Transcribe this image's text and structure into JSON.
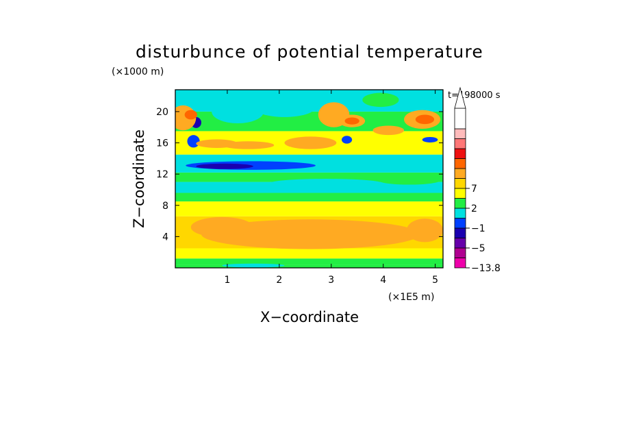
{
  "chart_data": {
    "type": "heatmap",
    "title": "disturbunce of potential temperature",
    "y_unit": "(×1000 m)",
    "x_unit": "(×1E5 m)",
    "time_label": "t=198000 s",
    "xlabel": "X−coordinate",
    "ylabel": "Z−coordinate",
    "xlim": [
      0,
      5.15
    ],
    "ylim": [
      0,
      22.8
    ],
    "xticks": [
      1,
      2,
      3,
      4,
      5
    ],
    "yticks": [
      4,
      8,
      12,
      16,
      20
    ],
    "colorbar": {
      "labels": [
        {
          "value": "7",
          "level": 8
        },
        {
          "value": "2",
          "level": 6
        },
        {
          "value": "−1",
          "level": 4
        },
        {
          "value": "−5",
          "level": 2
        },
        {
          "value": "−13.8",
          "level": 0
        }
      ],
      "colors": [
        "#ee00aa",
        "#b00090",
        "#6600aa",
        "#1a00b0",
        "#0040ff",
        "#00e0e0",
        "#22ee44",
        "#ffff00",
        "#ffd700",
        "#ffaa22",
        "#ff6600",
        "#ee1111",
        "#ff7777",
        "#ffbbbb",
        "#ffffff"
      ],
      "extend_max": true
    },
    "bands": [
      {
        "z0": 0.0,
        "z1": 0.4,
        "color": "#22ee44"
      },
      {
        "z0": 0.4,
        "z1": 1.2,
        "color": "#22ee44"
      },
      {
        "z0": 1.2,
        "z1": 2.5,
        "color": "#ffff00"
      },
      {
        "z0": 2.5,
        "z1": 6.6,
        "color": "#ffd700"
      },
      {
        "z0": 6.6,
        "z1": 8.5,
        "color": "#ffff00"
      },
      {
        "z0": 8.5,
        "z1": 9.6,
        "color": "#22ee44"
      },
      {
        "z0": 9.6,
        "z1": 11.0,
        "color": "#00e0e0"
      },
      {
        "z0": 11.0,
        "z1": 12.2,
        "color": "#22ee44"
      },
      {
        "z0": 12.2,
        "z1": 14.5,
        "color": "#00e0e0"
      },
      {
        "z0": 14.5,
        "z1": 17.5,
        "color": "#ffff00"
      },
      {
        "z0": 17.5,
        "z1": 20.0,
        "color": "#22ee44"
      },
      {
        "z0": 20.0,
        "z1": 22.8,
        "color": "#00e0e0"
      }
    ],
    "features": [
      {
        "x": 2.6,
        "z": 4.3,
        "rx": 2.1,
        "rz": 1.9,
        "color": "#ffaa22"
      },
      {
        "x": 0.9,
        "z": 5.2,
        "rx": 0.6,
        "rz": 1.3,
        "color": "#ffaa22"
      },
      {
        "x": 4.8,
        "z": 4.8,
        "rx": 0.35,
        "rz": 1.5,
        "color": "#ffaa22"
      },
      {
        "x": 1.45,
        "z": 13.1,
        "rx": 1.25,
        "rz": 0.55,
        "color": "#0040ff"
      },
      {
        "x": 0.95,
        "z": 13.0,
        "rx": 0.55,
        "rz": 0.35,
        "color": "#1a00b0"
      },
      {
        "x": 0.35,
        "z": 16.2,
        "rx": 0.12,
        "rz": 0.8,
        "color": "#0040ff"
      },
      {
        "x": 0.4,
        "z": 18.6,
        "rx": 0.1,
        "rz": 0.7,
        "color": "#1a00b0"
      },
      {
        "x": 0.8,
        "z": 15.9,
        "rx": 0.4,
        "rz": 0.55,
        "color": "#ffaa22"
      },
      {
        "x": 1.4,
        "z": 15.7,
        "rx": 0.5,
        "rz": 0.5,
        "color": "#ffaa22"
      },
      {
        "x": 2.6,
        "z": 16.0,
        "rx": 0.5,
        "rz": 0.8,
        "color": "#ffaa22"
      },
      {
        "x": 0.15,
        "z": 19.2,
        "rx": 0.25,
        "rz": 1.6,
        "color": "#ffaa22"
      },
      {
        "x": 0.3,
        "z": 19.6,
        "rx": 0.12,
        "rz": 0.6,
        "color": "#ff6600"
      },
      {
        "x": 1.2,
        "z": 20.0,
        "rx": 0.5,
        "rz": 1.5,
        "color": "#00e0e0"
      },
      {
        "x": 2.1,
        "z": 20.6,
        "rx": 0.6,
        "rz": 1.3,
        "color": "#00e0e0"
      },
      {
        "x": 3.05,
        "z": 19.6,
        "rx": 0.3,
        "rz": 1.6,
        "color": "#ffaa22"
      },
      {
        "x": 3.4,
        "z": 18.8,
        "rx": 0.25,
        "rz": 0.8,
        "color": "#ffaa22"
      },
      {
        "x": 3.4,
        "z": 18.8,
        "rx": 0.14,
        "rz": 0.45,
        "color": "#ff6600"
      },
      {
        "x": 4.1,
        "z": 17.6,
        "rx": 0.3,
        "rz": 0.6,
        "color": "#ffaa22"
      },
      {
        "x": 4.75,
        "z": 19.0,
        "rx": 0.35,
        "rz": 1.2,
        "color": "#ffaa22"
      },
      {
        "x": 4.8,
        "z": 19.0,
        "rx": 0.18,
        "rz": 0.6,
        "color": "#ff6600"
      },
      {
        "x": 3.3,
        "z": 16.4,
        "rx": 0.1,
        "rz": 0.5,
        "color": "#0040ff"
      },
      {
        "x": 4.9,
        "z": 16.4,
        "rx": 0.15,
        "rz": 0.35,
        "color": "#0040ff"
      },
      {
        "x": 3.95,
        "z": 21.5,
        "rx": 0.35,
        "rz": 0.9,
        "color": "#22ee44"
      },
      {
        "x": 2.9,
        "z": 10.8,
        "rx": 1.1,
        "rz": 0.6,
        "color": "#00e0e0"
      },
      {
        "x": 4.5,
        "z": 11.2,
        "rx": 0.6,
        "rz": 0.55,
        "color": "#22ee44"
      },
      {
        "x": 1.5,
        "z": 0.3,
        "rx": 0.6,
        "rz": 0.25,
        "color": "#00e0e0"
      }
    ]
  }
}
